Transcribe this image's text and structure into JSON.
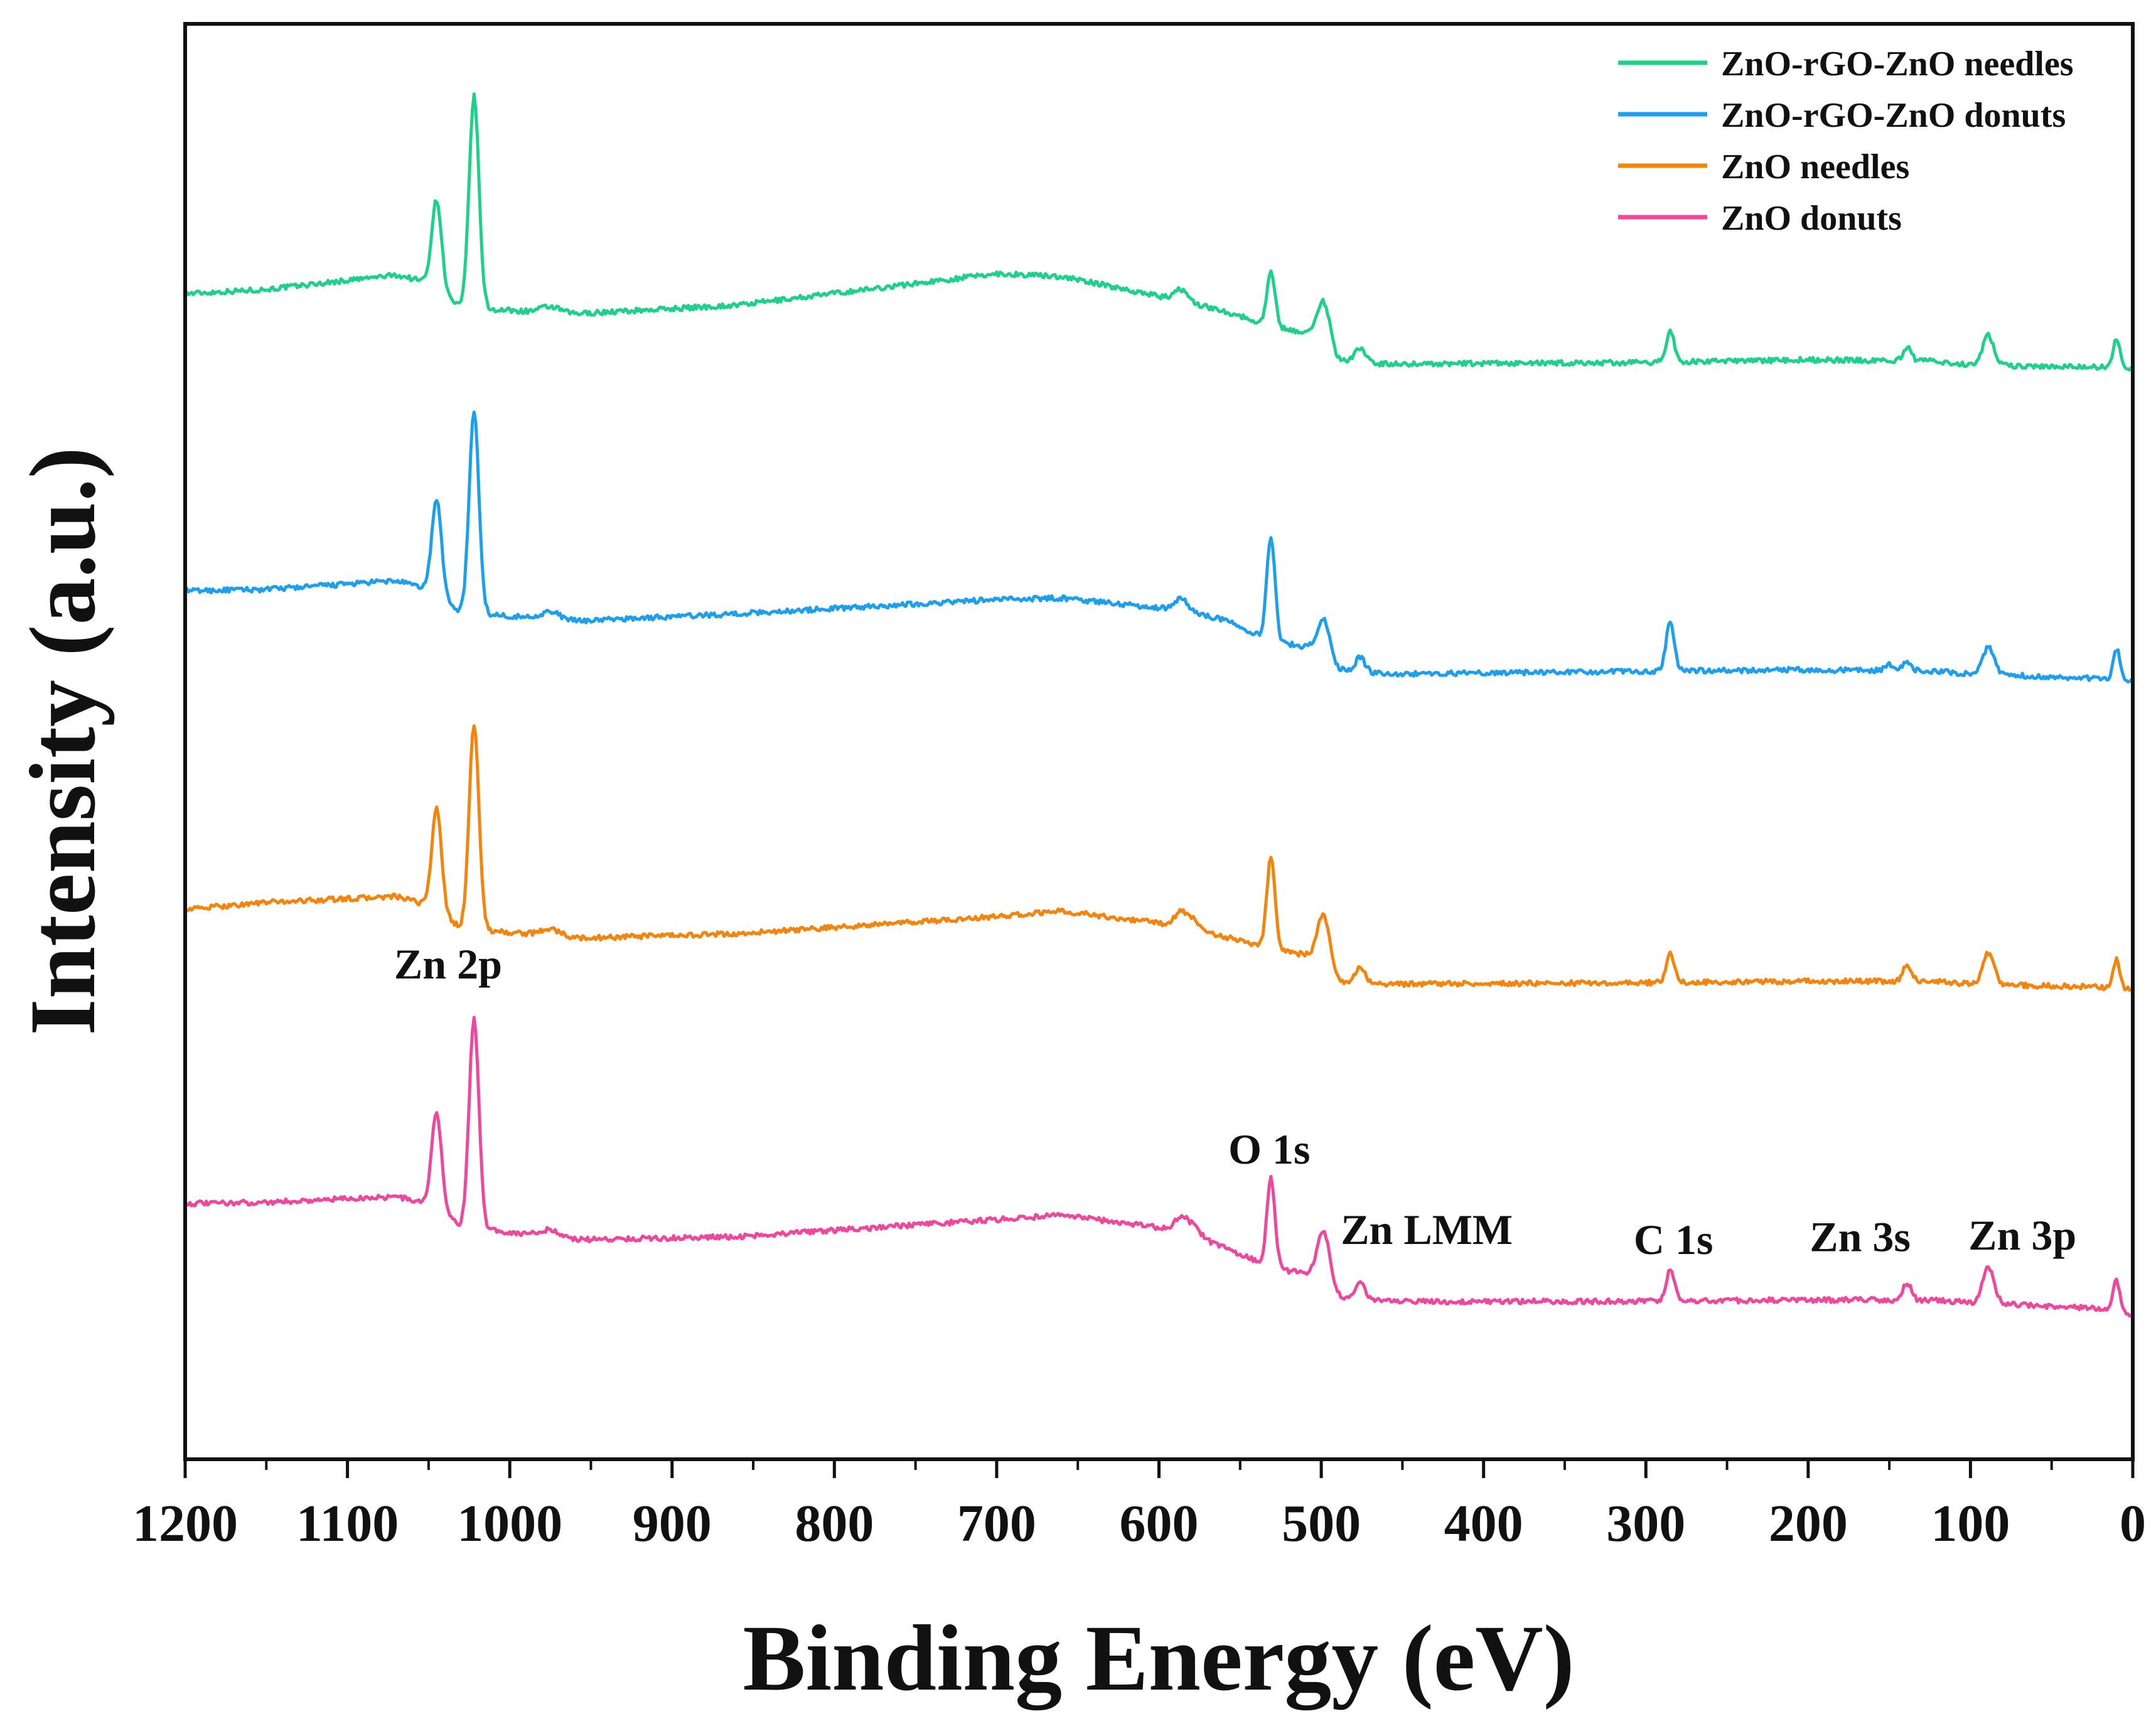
{
  "chart_data": {
    "type": "line",
    "title": "",
    "xlabel": "Binding Energy (eV)",
    "ylabel": "Intensity (a.u.)",
    "xlim": [
      1200,
      0
    ],
    "x_reversed": true,
    "y_axis_ticks": "none",
    "y_units": "arbitrary; traces vertically offset for clarity",
    "xticks": [
      1200,
      1100,
      1000,
      900,
      800,
      700,
      600,
      500,
      400,
      300,
      200,
      100,
      0
    ],
    "xtick_labels": [
      "1200",
      "1100",
      "1000",
      "900",
      "800",
      "700",
      "600",
      "500",
      "400",
      "300",
      "200",
      "100",
      "0"
    ],
    "legend_position": "top-right",
    "series": [
      {
        "name": "ZnO-rGO-ZnO needles",
        "color": "#1dd18a",
        "baseline": [
          [
            1200,
            0.812
          ],
          [
            1150,
            0.815
          ],
          [
            1070,
            0.825
          ],
          [
            1050,
            0.82
          ],
          [
            1030,
            0.802
          ],
          [
            960,
            0.798
          ],
          [
            860,
            0.804
          ],
          [
            700,
            0.826
          ],
          [
            660,
            0.824
          ],
          [
            590,
            0.808
          ],
          [
            560,
            0.8
          ],
          [
            530,
            0.789
          ],
          [
            500,
            0.783
          ],
          [
            492,
            0.766
          ],
          [
            460,
            0.763
          ],
          [
            300,
            0.764
          ],
          [
            200,
            0.766
          ],
          [
            120,
            0.765
          ],
          [
            100,
            0.762
          ],
          [
            20,
            0.761
          ],
          [
            0,
            0.759
          ]
        ],
        "peaks": [
          [
            1045,
            0.062,
            3
          ],
          [
            1022,
            0.148,
            3
          ],
          [
            975,
            0.004,
            6
          ],
          [
            586,
            0.008,
            4
          ],
          [
            531,
            0.038,
            2.5
          ],
          [
            498,
            0.027,
            4
          ],
          [
            476,
            0.01,
            3
          ],
          [
            285,
            0.022,
            2.5
          ],
          [
            139,
            0.009,
            2.5
          ],
          [
            89,
            0.021,
            3.5
          ],
          [
            10,
            0.021,
            2
          ]
        ]
      },
      {
        "name": "ZnO-rGO-ZnO donuts",
        "color": "#1c9fef",
        "baseline": [
          [
            1200,
            0.605
          ],
          [
            1150,
            0.606
          ],
          [
            1070,
            0.612
          ],
          [
            1050,
            0.606
          ],
          [
            1030,
            0.59
          ],
          [
            960,
            0.584
          ],
          [
            860,
            0.589
          ],
          [
            700,
            0.599
          ],
          [
            660,
            0.6
          ],
          [
            590,
            0.592
          ],
          [
            560,
            0.585
          ],
          [
            530,
            0.57
          ],
          [
            500,
            0.564
          ],
          [
            492,
            0.55
          ],
          [
            460,
            0.547
          ],
          [
            300,
            0.549
          ],
          [
            200,
            0.55
          ],
          [
            120,
            0.549
          ],
          [
            100,
            0.547
          ],
          [
            20,
            0.544
          ],
          [
            0,
            0.542
          ]
        ],
        "peaks": [
          [
            1045,
            0.066,
            3
          ],
          [
            1022,
            0.14,
            3
          ],
          [
            975,
            0.005,
            6
          ],
          [
            586,
            0.009,
            4
          ],
          [
            531,
            0.073,
            2.5
          ],
          [
            498,
            0.024,
            4
          ],
          [
            476,
            0.01,
            3
          ],
          [
            285,
            0.035,
            2.5
          ],
          [
            150,
            0.004,
            2.5
          ],
          [
            139,
            0.007,
            2.5
          ],
          [
            89,
            0.019,
            3.5
          ],
          [
            10,
            0.022,
            2
          ]
        ]
      },
      {
        "name": "ZnO needles",
        "color": "#f5840c",
        "baseline": [
          [
            1200,
            0.383
          ],
          [
            1150,
            0.388
          ],
          [
            1070,
            0.392
          ],
          [
            1050,
            0.386
          ],
          [
            1030,
            0.37
          ],
          [
            960,
            0.363
          ],
          [
            860,
            0.366
          ],
          [
            700,
            0.378
          ],
          [
            660,
            0.382
          ],
          [
            590,
            0.372
          ],
          [
            560,
            0.364
          ],
          [
            530,
            0.356
          ],
          [
            500,
            0.349
          ],
          [
            492,
            0.333
          ],
          [
            460,
            0.331
          ],
          [
            300,
            0.332
          ],
          [
            200,
            0.333
          ],
          [
            120,
            0.333
          ],
          [
            100,
            0.331
          ],
          [
            20,
            0.329
          ],
          [
            0,
            0.327
          ]
        ],
        "peaks": [
          [
            1045,
            0.071,
            3
          ],
          [
            1022,
            0.143,
            3
          ],
          [
            975,
            0.005,
            6
          ],
          [
            586,
            0.01,
            4
          ],
          [
            578,
            0.006,
            4
          ],
          [
            531,
            0.063,
            2.5
          ],
          [
            498,
            0.033,
            4
          ],
          [
            476,
            0.011,
            3
          ],
          [
            285,
            0.02,
            2.5
          ],
          [
            139,
            0.012,
            2.5
          ],
          [
            89,
            0.022,
            3.5
          ],
          [
            10,
            0.02,
            2
          ]
        ]
      },
      {
        "name": "ZnO donuts",
        "color": "#f0479e",
        "baseline": [
          [
            1200,
            0.178
          ],
          [
            1150,
            0.179
          ],
          [
            1070,
            0.183
          ],
          [
            1050,
            0.178
          ],
          [
            1030,
            0.162
          ],
          [
            960,
            0.153
          ],
          [
            860,
            0.155
          ],
          [
            700,
            0.167
          ],
          [
            660,
            0.17
          ],
          [
            590,
            0.16
          ],
          [
            560,
            0.148
          ],
          [
            530,
            0.133
          ],
          [
            500,
            0.128
          ],
          [
            492,
            0.113
          ],
          [
            460,
            0.11
          ],
          [
            300,
            0.11
          ],
          [
            200,
            0.111
          ],
          [
            120,
            0.111
          ],
          [
            100,
            0.109
          ],
          [
            20,
            0.105
          ],
          [
            0,
            0.1
          ]
        ],
        "peaks": [
          [
            1045,
            0.068,
            3
          ],
          [
            1022,
            0.146,
            3
          ],
          [
            975,
            0.005,
            6
          ],
          [
            586,
            0.01,
            4
          ],
          [
            578,
            0.006,
            4
          ],
          [
            531,
            0.062,
            2.5
          ],
          [
            498,
            0.034,
            4
          ],
          [
            476,
            0.012,
            3
          ],
          [
            285,
            0.022,
            2.5
          ],
          [
            139,
            0.012,
            2.5
          ],
          [
            89,
            0.025,
            3.5
          ],
          [
            10,
            0.022,
            2
          ]
        ]
      }
    ],
    "annotations": [
      {
        "text": "Zn 2p",
        "x": 1038,
        "y": 0.335
      },
      {
        "text": "O 1s",
        "x": 532,
        "y": 0.206
      },
      {
        "text": "Zn LMM",
        "x": 435,
        "y": 0.15
      },
      {
        "text": "C 1s",
        "x": 283,
        "y": 0.143
      },
      {
        "text": "Zn 3s",
        "x": 168,
        "y": 0.145
      },
      {
        "text": "Zn 3p",
        "x": 68,
        "y": 0.146
      }
    ]
  }
}
